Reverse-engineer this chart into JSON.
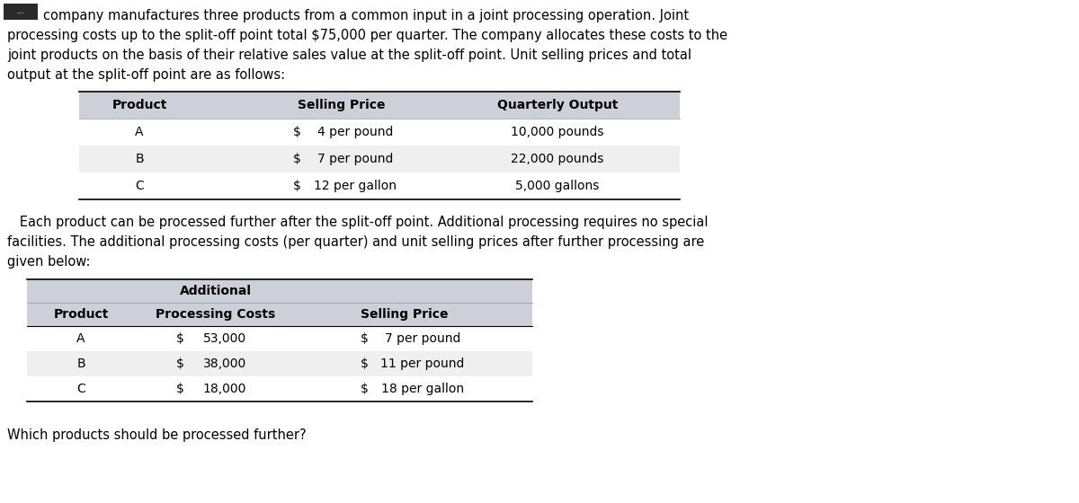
{
  "intro_line0": "company manufactures three products from a common input in a joint processing operation. Joint",
  "intro_line1": "processing costs up to the split-off point total $75,000 per quarter. The company allocates these costs to the",
  "intro_line2": "joint products on the basis of their relative sales value at the split-off point. Unit selling prices and total",
  "intro_line3": "output at the split-off point are as follows:",
  "table1_header": [
    "Product",
    "Selling Price",
    "Quarterly Output"
  ],
  "table1_rows": [
    [
      "A",
      "$",
      "4 per pound",
      "10,000 pounds"
    ],
    [
      "B",
      "$",
      "7 per pound",
      "22,000 pounds"
    ],
    [
      "C",
      "$",
      "12 per gallon",
      "5,000 gallons"
    ]
  ],
  "mid_line0": "   Each product can be processed further after the split-off point. Additional processing requires no special",
  "mid_line1": "facilities. The additional processing costs (per quarter) and unit selling prices after further processing are",
  "mid_line2": "given below:",
  "table2_header_row1_text": "Additional",
  "table2_header_row2": [
    "Product",
    "Processing Costs",
    "Selling Price"
  ],
  "table2_rows": [
    [
      "A",
      "$",
      "53,000",
      "$",
      "7 per pound"
    ],
    [
      "B",
      "$",
      "38,000",
      "$",
      "11 per pound"
    ],
    [
      "C",
      "$",
      "18,000",
      "$",
      "18 per gallon"
    ]
  ],
  "question_text": "Which products should be processed further?",
  "header_bg": "#cdd0d8",
  "row_bg_alt": "#efefef",
  "row_bg_white": "#ffffff",
  "text_color": "#000000",
  "font_size_body": 10.5,
  "font_size_table": 10.0,
  "redacted_color": "#2a2a2a"
}
